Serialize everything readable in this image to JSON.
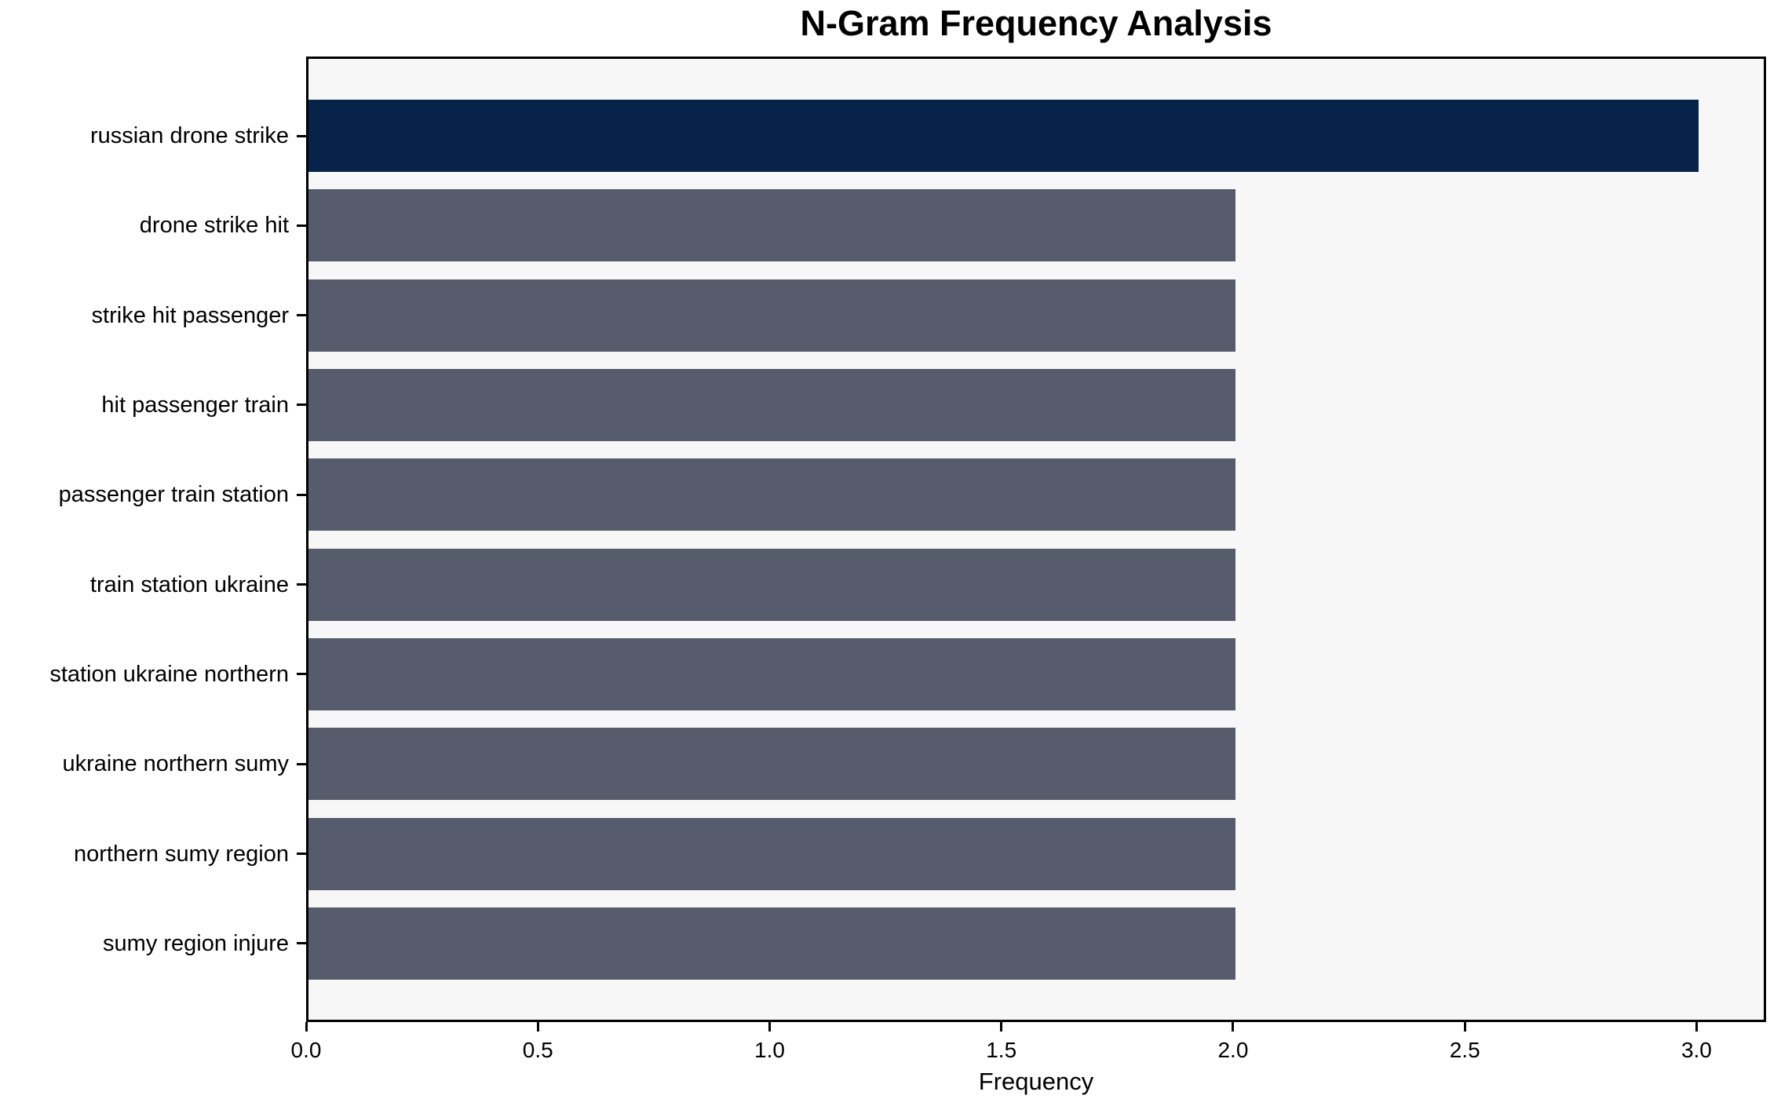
{
  "chart_data": {
    "type": "bar",
    "orientation": "horizontal",
    "title": "N-Gram Frequency Analysis",
    "xlabel": "Frequency",
    "ylabel": "",
    "categories": [
      "russian drone strike",
      "drone strike hit",
      "strike hit passenger",
      "hit passenger train",
      "passenger train station",
      "train station ukraine",
      "station ukraine northern",
      "ukraine northern sumy",
      "northern sumy region",
      "sumy region injure"
    ],
    "values": [
      3,
      2,
      2,
      2,
      2,
      2,
      2,
      2,
      2,
      2
    ],
    "xlim": [
      0,
      3.15
    ],
    "xticks": [
      0.0,
      0.5,
      1.0,
      1.5,
      2.0,
      2.5,
      3.0
    ],
    "xtick_labels": [
      "0.0",
      "0.5",
      "1.0",
      "1.5",
      "2.0",
      "2.5",
      "3.0"
    ],
    "grid": false,
    "legend": "none",
    "colors": {
      "highlight_bar": "#08234A",
      "default_bar": "#565C6B",
      "plot_background": "#F7F7F8",
      "figure_background": "#FFFFFF",
      "spine": "#000000",
      "text": "#000000"
    },
    "bar_colors": [
      "#08234A",
      "#565C6B",
      "#565C6B",
      "#565C6B",
      "#565C6B",
      "#565C6B",
      "#565C6B",
      "#565C6B",
      "#565C6B",
      "#565C6B"
    ]
  }
}
